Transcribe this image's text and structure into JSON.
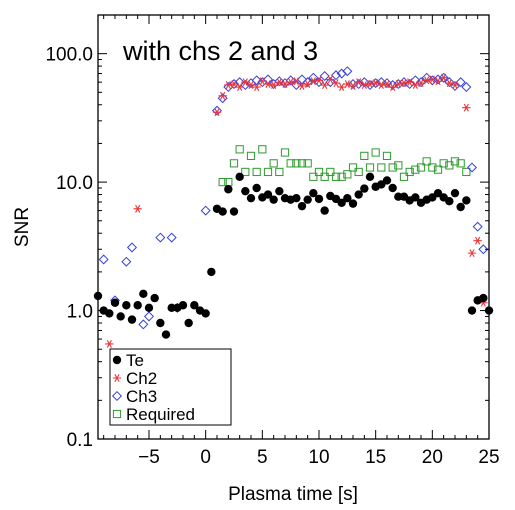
{
  "chart_data": {
    "type": "scatter",
    "title": "",
    "annotation": "with chs 2 and 3",
    "xlabel": "Plasma time [s]",
    "ylabel": "SNR",
    "xlim": [
      -9.5,
      25
    ],
    "ylim": [
      0.1,
      200
    ],
    "y_scale": "log",
    "grid": false,
    "legend_placement": "bottom-left",
    "x_ticks": [
      {
        "value": -5,
        "label": "−5"
      },
      {
        "value": 0,
        "label": "0"
      },
      {
        "value": 5,
        "label": "5"
      },
      {
        "value": 10,
        "label": "10"
      },
      {
        "value": 15,
        "label": "15"
      },
      {
        "value": 20,
        "label": "20"
      },
      {
        "value": 25,
        "label": "25"
      }
    ],
    "y_ticks": [
      {
        "value": 0.1,
        "label": "0.1"
      },
      {
        "value": 1.0,
        "label": "1.0"
      },
      {
        "value": 10.0,
        "label": "10.0"
      },
      {
        "value": 100.0,
        "label": "100.0"
      }
    ],
    "series": [
      {
        "name": "Te",
        "marker": "filled-circle",
        "color": "#000000",
        "points": [
          [
            -9.5,
            1.3
          ],
          [
            -9.0,
            1.0
          ],
          [
            -8.5,
            0.95
          ],
          [
            -8.0,
            1.15
          ],
          [
            -7.5,
            0.9
          ],
          [
            -7.0,
            1.1
          ],
          [
            -6.5,
            0.85
          ],
          [
            -6.0,
            1.1
          ],
          [
            -5.5,
            1.35
          ],
          [
            -5.0,
            1.05
          ],
          [
            -4.5,
            1.25
          ],
          [
            -4.0,
            0.8
          ],
          [
            -3.5,
            0.65
          ],
          [
            -3.0,
            1.05
          ],
          [
            -2.5,
            1.05
          ],
          [
            -2.0,
            1.1
          ],
          [
            -1.5,
            0.8
          ],
          [
            -1.0,
            1.1
          ],
          [
            -0.5,
            1.0
          ],
          [
            0.0,
            0.95
          ],
          [
            0.5,
            2.0
          ],
          [
            1.0,
            6.2
          ],
          [
            1.5,
            5.9
          ],
          [
            2.0,
            8.8
          ],
          [
            2.5,
            5.9
          ],
          [
            3.0,
            11.0
          ],
          [
            3.5,
            8.5
          ],
          [
            4.0,
            7.5
          ],
          [
            4.5,
            9.0
          ],
          [
            5.0,
            7.6
          ],
          [
            5.5,
            8.0
          ],
          [
            6.0,
            7.3
          ],
          [
            6.5,
            8.5
          ],
          [
            7.0,
            7.5
          ],
          [
            7.5,
            7.3
          ],
          [
            8.0,
            7.5
          ],
          [
            8.5,
            6.5
          ],
          [
            9.0,
            7.3
          ],
          [
            9.5,
            8.2
          ],
          [
            10.0,
            7.4
          ],
          [
            10.5,
            6.0
          ],
          [
            11.0,
            7.8
          ],
          [
            11.5,
            7.4
          ],
          [
            12.0,
            6.9
          ],
          [
            12.5,
            7.5
          ],
          [
            13.0,
            6.8
          ],
          [
            13.5,
            8.0
          ],
          [
            14.0,
            8.9
          ],
          [
            14.5,
            11.0
          ],
          [
            15.0,
            9.2
          ],
          [
            15.5,
            9.6
          ],
          [
            16.0,
            10.3
          ],
          [
            16.5,
            9.0
          ],
          [
            17.0,
            7.7
          ],
          [
            17.5,
            7.7
          ],
          [
            18.0,
            7.2
          ],
          [
            18.5,
            7.6
          ],
          [
            19.0,
            6.9
          ],
          [
            19.5,
            7.3
          ],
          [
            20.0,
            7.6
          ],
          [
            20.5,
            8.2
          ],
          [
            21.0,
            7.6
          ],
          [
            21.5,
            7.1
          ],
          [
            22.0,
            8.2
          ],
          [
            22.5,
            6.4
          ],
          [
            23.0,
            7.2
          ],
          [
            23.5,
            1.0
          ],
          [
            24.0,
            1.2
          ],
          [
            24.5,
            1.25
          ],
          [
            25.0,
            1.0
          ]
        ]
      },
      {
        "name": "Ch2",
        "marker": "asterisk",
        "color": "#e8343a",
        "points": [
          [
            -8.5,
            0.55
          ],
          [
            -7.0,
            0.35
          ],
          [
            -6.0,
            6.2
          ],
          [
            -5.5,
            0.45
          ],
          [
            -1.5,
            0.25
          ],
          [
            -0.5,
            0.16
          ],
          [
            0.0,
            0.38
          ],
          [
            1.0,
            35.0
          ],
          [
            1.5,
            47.0
          ],
          [
            2.0,
            57.0
          ],
          [
            2.5,
            58.0
          ],
          [
            3.0,
            55.0
          ],
          [
            3.5,
            60.0
          ],
          [
            4.0,
            57.0
          ],
          [
            4.5,
            55.0
          ],
          [
            5.0,
            61.0
          ],
          [
            5.5,
            58.0
          ],
          [
            6.0,
            57.0
          ],
          [
            6.5,
            60.0
          ],
          [
            7.0,
            58.0
          ],
          [
            7.5,
            60.0
          ],
          [
            8.0,
            61.0
          ],
          [
            8.5,
            56.0
          ],
          [
            9.0,
            58.0
          ],
          [
            9.5,
            61.0
          ],
          [
            10.0,
            62.0
          ],
          [
            10.5,
            57.0
          ],
          [
            11.0,
            63.0
          ],
          [
            11.5,
            59.0
          ],
          [
            12.0,
            55.0
          ],
          [
            12.5,
            58.0
          ],
          [
            13.0,
            56.0
          ],
          [
            13.5,
            60.0
          ],
          [
            14.0,
            57.0
          ],
          [
            14.5,
            58.0
          ],
          [
            15.0,
            59.0
          ],
          [
            15.5,
            57.0
          ],
          [
            16.0,
            58.0
          ],
          [
            16.5,
            55.0
          ],
          [
            17.0,
            58.0
          ],
          [
            17.5,
            59.0
          ],
          [
            18.0,
            60.0
          ],
          [
            18.5,
            57.0
          ],
          [
            19.0,
            59.0
          ],
          [
            19.5,
            62.0
          ],
          [
            20.0,
            63.0
          ],
          [
            20.5,
            61.0
          ],
          [
            21.0,
            65.0
          ],
          [
            21.5,
            59.0
          ],
          [
            22.0,
            57.0
          ],
          [
            23.0,
            38.0
          ],
          [
            23.5,
            2.8
          ],
          [
            24.0,
            3.5
          ],
          [
            24.5,
            1.15
          ]
        ]
      },
      {
        "name": "Ch3",
        "marker": "open-diamond",
        "color": "#3540d8",
        "points": [
          [
            -9.0,
            2.5
          ],
          [
            -8.0,
            1.2
          ],
          [
            -7.0,
            2.4
          ],
          [
            -6.5,
            3.1
          ],
          [
            -5.5,
            0.78
          ],
          [
            -5.0,
            0.9
          ],
          [
            -4.0,
            3.7
          ],
          [
            -3.0,
            3.7
          ],
          [
            -2.5,
            1.05
          ],
          [
            -1.0,
            0.42
          ],
          [
            0.0,
            6.0
          ],
          [
            1.0,
            36.0
          ],
          [
            1.5,
            45.0
          ],
          [
            2.0,
            55.0
          ],
          [
            2.5,
            58.0
          ],
          [
            3.0,
            60.0
          ],
          [
            3.5,
            57.0
          ],
          [
            4.0,
            59.0
          ],
          [
            4.5,
            62.0
          ],
          [
            5.0,
            60.0
          ],
          [
            5.5,
            63.0
          ],
          [
            6.0,
            58.0
          ],
          [
            6.5,
            61.0
          ],
          [
            7.0,
            59.0
          ],
          [
            7.5,
            62.0
          ],
          [
            8.0,
            57.0
          ],
          [
            8.5,
            63.0
          ],
          [
            9.0,
            60.0
          ],
          [
            9.5,
            65.0
          ],
          [
            10.0,
            60.0
          ],
          [
            10.5,
            67.0
          ],
          [
            11.0,
            60.0
          ],
          [
            11.5,
            68.0
          ],
          [
            12.0,
            70.0
          ],
          [
            12.5,
            73.0
          ],
          [
            13.0,
            58.0
          ],
          [
            13.5,
            58.0
          ],
          [
            14.0,
            60.0
          ],
          [
            14.5,
            57.0
          ],
          [
            15.0,
            59.0
          ],
          [
            15.5,
            60.0
          ],
          [
            16.0,
            59.0
          ],
          [
            16.5,
            57.0
          ],
          [
            17.0,
            58.0
          ],
          [
            17.5,
            60.0
          ],
          [
            18.0,
            58.0
          ],
          [
            18.5,
            62.0
          ],
          [
            19.0,
            60.0
          ],
          [
            19.5,
            65.0
          ],
          [
            20.0,
            62.0
          ],
          [
            20.5,
            63.0
          ],
          [
            21.0,
            65.0
          ],
          [
            21.5,
            60.0
          ],
          [
            22.0,
            56.0
          ],
          [
            22.5,
            60.0
          ],
          [
            23.0,
            55.0
          ],
          [
            23.5,
            13.0
          ],
          [
            24.0,
            4.5
          ],
          [
            24.5,
            3.0
          ]
        ]
      },
      {
        "name": "Required",
        "marker": "open-square",
        "color": "#2e9a2e",
        "points": [
          [
            1.5,
            10.0
          ],
          [
            2.0,
            10.0
          ],
          [
            2.5,
            14.0
          ],
          [
            3.0,
            18.0
          ],
          [
            3.5,
            12.0
          ],
          [
            4.0,
            16.0
          ],
          [
            4.5,
            12.0
          ],
          [
            5.0,
            18.0
          ],
          [
            5.5,
            12.0
          ],
          [
            6.0,
            14.0
          ],
          [
            6.5,
            12.0
          ],
          [
            7.0,
            17.0
          ],
          [
            7.5,
            14.0
          ],
          [
            8.0,
            14.0
          ],
          [
            8.5,
            14.0
          ],
          [
            9.0,
            14.0
          ],
          [
            9.5,
            11.0
          ],
          [
            10.0,
            12.0
          ],
          [
            10.5,
            11.0
          ],
          [
            11.0,
            12.0
          ],
          [
            11.5,
            11.0
          ],
          [
            12.0,
            11.0
          ],
          [
            12.5,
            11.5
          ],
          [
            13.0,
            13.0
          ],
          [
            13.5,
            12.0
          ],
          [
            14.0,
            16.0
          ],
          [
            14.5,
            13.0
          ],
          [
            15.0,
            17.0
          ],
          [
            15.5,
            13.0
          ],
          [
            16.0,
            16.0
          ],
          [
            16.5,
            13.0
          ],
          [
            17.0,
            13.5
          ],
          [
            17.5,
            11.0
          ],
          [
            18.0,
            12.0
          ],
          [
            18.5,
            12.5
          ],
          [
            19.0,
            13.0
          ],
          [
            19.5,
            14.5
          ],
          [
            20.0,
            13.0
          ],
          [
            20.5,
            12.5
          ],
          [
            21.0,
            14.0
          ],
          [
            21.5,
            13.5
          ],
          [
            22.0,
            14.5
          ],
          [
            22.5,
            14.0
          ],
          [
            23.0,
            12.0
          ]
        ]
      }
    ]
  }
}
